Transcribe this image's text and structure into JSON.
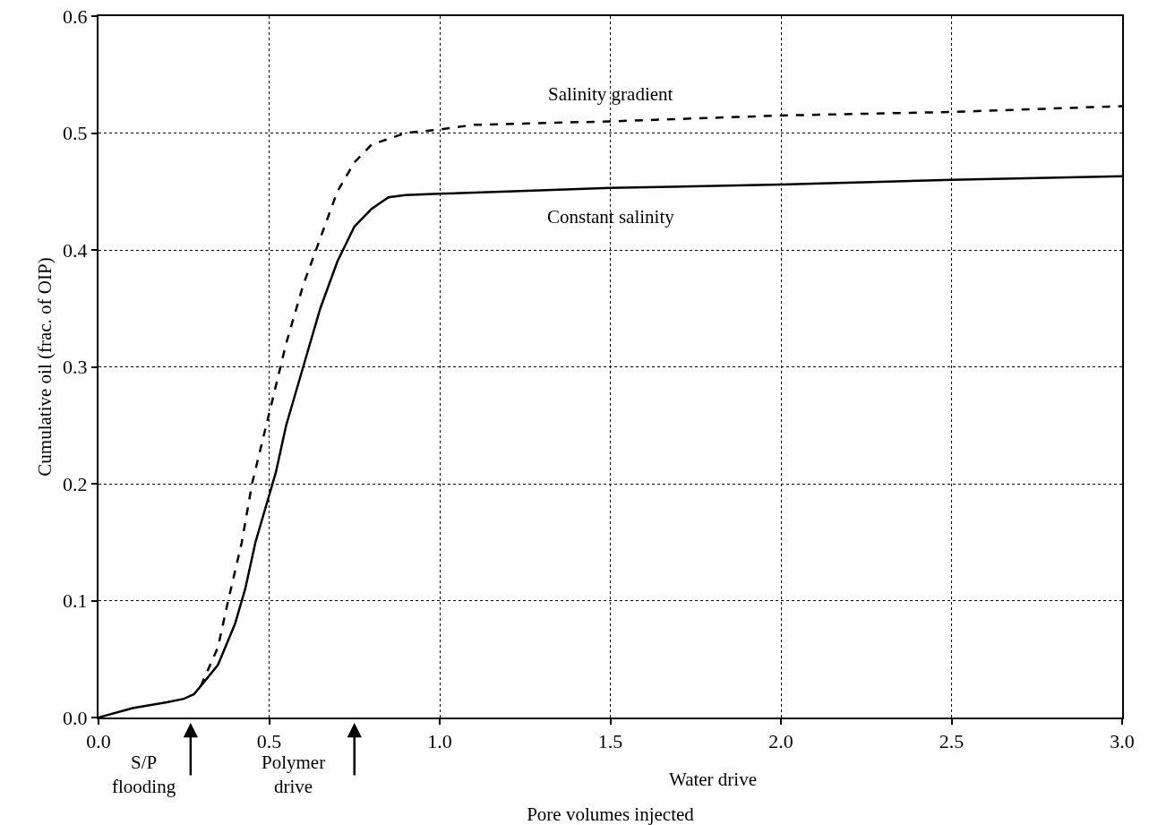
{
  "chart_data": {
    "type": "line",
    "xlabel": "Pore volumes injected",
    "ylabel": "Cumulative oil (frac. of OIP)",
    "xlim": [
      0,
      3
    ],
    "xticks": [
      {
        "value": 0,
        "label": "0.0"
      },
      {
        "value": 0.5,
        "label": "0.5"
      },
      {
        "value": 1,
        "label": "1.0"
      },
      {
        "value": 1.5,
        "label": "1.5"
      },
      {
        "value": 2,
        "label": "2.0"
      },
      {
        "value": 2.5,
        "label": "2.5"
      },
      {
        "value": 3,
        "label": "3.0"
      }
    ],
    "ylim": [
      0,
      0.6
    ],
    "yticks": [
      {
        "value": 0,
        "label": "0.0"
      },
      0.1,
      0.2,
      0.3,
      0.4,
      0.5,
      0.6
    ],
    "grid": true,
    "legend": false,
    "series": [
      {
        "name": "Constant salinity",
        "color": "#000000",
        "line_style": "solid",
        "x": [
          0,
          0.1,
          0.2,
          0.25,
          0.28,
          0.3,
          0.35,
          0.4,
          0.43,
          0.46,
          0.5,
          0.52,
          0.55,
          0.6,
          0.65,
          0.7,
          0.75,
          0.8,
          0.85,
          0.9,
          1.0,
          1.2,
          1.5,
          2.0,
          2.5,
          3.0
        ],
        "values": [
          0,
          0.008,
          0.013,
          0.016,
          0.02,
          0.027,
          0.045,
          0.08,
          0.11,
          0.15,
          0.19,
          0.21,
          0.25,
          0.3,
          0.35,
          0.39,
          0.42,
          0.435,
          0.445,
          0.447,
          0.448,
          0.45,
          0.453,
          0.456,
          0.46,
          0.463
        ]
      },
      {
        "name": "Salinity gradient",
        "color": "#000000",
        "line_style": "dashed",
        "x": [
          0.3,
          0.35,
          0.38,
          0.42,
          0.45,
          0.5,
          0.55,
          0.6,
          0.65,
          0.7,
          0.75,
          0.8,
          0.9,
          1.0,
          1.1,
          1.5,
          2.0,
          2.5,
          3.0
        ],
        "values": [
          0.027,
          0.06,
          0.1,
          0.15,
          0.2,
          0.26,
          0.32,
          0.37,
          0.41,
          0.45,
          0.475,
          0.49,
          0.5,
          0.503,
          0.507,
          0.51,
          0.515,
          0.518,
          0.523
        ]
      }
    ],
    "annotations": [
      "S/P flooding",
      "Polymer drive",
      "Water drive"
    ]
  }
}
